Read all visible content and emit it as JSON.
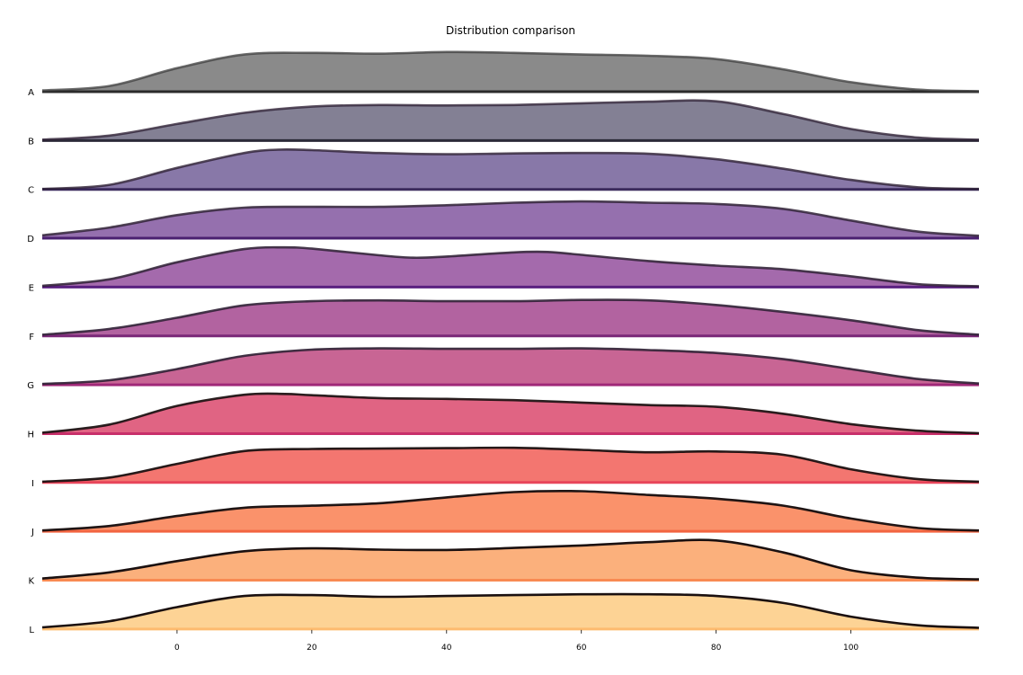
{
  "chart_data": {
    "type": "ridgeline",
    "title": "Distribution comparison",
    "xlabel": "",
    "ylabel": "",
    "xlim": [
      -20,
      119
    ],
    "xticks": [
      0,
      20,
      40,
      60,
      80,
      100
    ],
    "xtick_labels": [
      "0",
      "20",
      "40",
      "60",
      "80",
      "100"
    ],
    "grid": false,
    "series": [
      {
        "name": "A",
        "color": "#8a8a8a",
        "baseline_color": "#2b2b2b",
        "density": [
          [
            -20,
            0.03
          ],
          [
            -10,
            0.14
          ],
          [
            0,
            0.57
          ],
          [
            10,
            0.9
          ],
          [
            20,
            0.94
          ],
          [
            30,
            0.92
          ],
          [
            40,
            0.96
          ],
          [
            50,
            0.94
          ],
          [
            60,
            0.9
          ],
          [
            70,
            0.87
          ],
          [
            80,
            0.79
          ],
          [
            90,
            0.54
          ],
          [
            100,
            0.23
          ],
          [
            110,
            0.05
          ],
          [
            119,
            0.01
          ]
        ]
      },
      {
        "name": "B",
        "color": "#838094",
        "baseline_color": "#2b2a38",
        "density": [
          [
            -20,
            0.02
          ],
          [
            -10,
            0.12
          ],
          [
            0,
            0.4
          ],
          [
            10,
            0.67
          ],
          [
            20,
            0.82
          ],
          [
            30,
            0.86
          ],
          [
            40,
            0.85
          ],
          [
            50,
            0.86
          ],
          [
            60,
            0.9
          ],
          [
            70,
            0.94
          ],
          [
            80,
            0.95
          ],
          [
            90,
            0.64
          ],
          [
            100,
            0.28
          ],
          [
            110,
            0.07
          ],
          [
            119,
            0.02
          ]
        ]
      },
      {
        "name": "C",
        "color": "#8878a8",
        "baseline_color": "#3b2a5c",
        "density": [
          [
            -20,
            0.01
          ],
          [
            -10,
            0.11
          ],
          [
            0,
            0.52
          ],
          [
            10,
            0.88
          ],
          [
            15,
            0.96
          ],
          [
            20,
            0.95
          ],
          [
            30,
            0.88
          ],
          [
            40,
            0.85
          ],
          [
            50,
            0.87
          ],
          [
            60,
            0.88
          ],
          [
            70,
            0.86
          ],
          [
            80,
            0.73
          ],
          [
            90,
            0.5
          ],
          [
            100,
            0.23
          ],
          [
            110,
            0.05
          ],
          [
            119,
            0.01
          ]
        ]
      },
      {
        "name": "D",
        "color": "#9570ae",
        "baseline_color": "#4a2070",
        "density": [
          [
            -20,
            0.07
          ],
          [
            -10,
            0.26
          ],
          [
            0,
            0.56
          ],
          [
            10,
            0.74
          ],
          [
            20,
            0.76
          ],
          [
            30,
            0.76
          ],
          [
            40,
            0.8
          ],
          [
            50,
            0.86
          ],
          [
            60,
            0.89
          ],
          [
            70,
            0.86
          ],
          [
            80,
            0.83
          ],
          [
            90,
            0.71
          ],
          [
            100,
            0.43
          ],
          [
            110,
            0.16
          ],
          [
            119,
            0.06
          ]
        ]
      },
      {
        "name": "E",
        "color": "#a46aac",
        "baseline_color": "#5a2080",
        "density": [
          [
            -20,
            0.03
          ],
          [
            -10,
            0.19
          ],
          [
            0,
            0.6
          ],
          [
            10,
            0.92
          ],
          [
            16,
            0.96
          ],
          [
            20,
            0.93
          ],
          [
            30,
            0.77
          ],
          [
            35,
            0.71
          ],
          [
            40,
            0.74
          ],
          [
            50,
            0.84
          ],
          [
            55,
            0.85
          ],
          [
            60,
            0.78
          ],
          [
            70,
            0.63
          ],
          [
            80,
            0.52
          ],
          [
            90,
            0.43
          ],
          [
            100,
            0.26
          ],
          [
            110,
            0.07
          ],
          [
            119,
            0.02
          ]
        ]
      },
      {
        "name": "F",
        "color": "#b263a0",
        "baseline_color": "#7a2878",
        "density": [
          [
            -20,
            0.03
          ],
          [
            -10,
            0.17
          ],
          [
            0,
            0.44
          ],
          [
            10,
            0.74
          ],
          [
            20,
            0.84
          ],
          [
            30,
            0.86
          ],
          [
            40,
            0.84
          ],
          [
            50,
            0.84
          ],
          [
            60,
            0.87
          ],
          [
            70,
            0.86
          ],
          [
            80,
            0.75
          ],
          [
            90,
            0.58
          ],
          [
            100,
            0.38
          ],
          [
            110,
            0.14
          ],
          [
            119,
            0.03
          ]
        ]
      },
      {
        "name": "G",
        "color": "#c86594",
        "baseline_color": "#a02878",
        "density": [
          [
            -20,
            0.02
          ],
          [
            -10,
            0.11
          ],
          [
            0,
            0.38
          ],
          [
            10,
            0.7
          ],
          [
            20,
            0.85
          ],
          [
            30,
            0.88
          ],
          [
            40,
            0.87
          ],
          [
            50,
            0.87
          ],
          [
            60,
            0.88
          ],
          [
            70,
            0.84
          ],
          [
            80,
            0.77
          ],
          [
            90,
            0.62
          ],
          [
            100,
            0.38
          ],
          [
            110,
            0.14
          ],
          [
            119,
            0.03
          ]
        ]
      },
      {
        "name": "H",
        "color": "#e06483",
        "baseline_color": "#c82f6a",
        "density": [
          [
            -20,
            0.02
          ],
          [
            -10,
            0.22
          ],
          [
            0,
            0.67
          ],
          [
            10,
            0.94
          ],
          [
            16,
            0.96
          ],
          [
            20,
            0.93
          ],
          [
            30,
            0.86
          ],
          [
            40,
            0.84
          ],
          [
            50,
            0.81
          ],
          [
            60,
            0.75
          ],
          [
            70,
            0.69
          ],
          [
            80,
            0.65
          ],
          [
            90,
            0.48
          ],
          [
            100,
            0.23
          ],
          [
            110,
            0.07
          ],
          [
            119,
            0.01
          ]
        ]
      },
      {
        "name": "I",
        "color": "#f37670",
        "baseline_color": "#e8455a",
        "density": [
          [
            -20,
            0.02
          ],
          [
            -10,
            0.12
          ],
          [
            0,
            0.45
          ],
          [
            10,
            0.76
          ],
          [
            20,
            0.81
          ],
          [
            30,
            0.82
          ],
          [
            40,
            0.83
          ],
          [
            50,
            0.84
          ],
          [
            60,
            0.79
          ],
          [
            70,
            0.73
          ],
          [
            80,
            0.75
          ],
          [
            90,
            0.67
          ],
          [
            100,
            0.32
          ],
          [
            110,
            0.08
          ],
          [
            119,
            0.02
          ]
        ]
      },
      {
        "name": "J",
        "color": "#fa926b",
        "baseline_color": "#f26440",
        "density": [
          [
            -20,
            0.02
          ],
          [
            -10,
            0.13
          ],
          [
            0,
            0.37
          ],
          [
            10,
            0.57
          ],
          [
            20,
            0.62
          ],
          [
            30,
            0.68
          ],
          [
            40,
            0.82
          ],
          [
            50,
            0.95
          ],
          [
            60,
            0.97
          ],
          [
            70,
            0.88
          ],
          [
            80,
            0.79
          ],
          [
            90,
            0.62
          ],
          [
            100,
            0.31
          ],
          [
            110,
            0.08
          ],
          [
            119,
            0.02
          ]
        ]
      },
      {
        "name": "K",
        "color": "#fbb07c",
        "baseline_color": "#f88a52",
        "density": [
          [
            -20,
            0.04
          ],
          [
            -10,
            0.19
          ],
          [
            0,
            0.46
          ],
          [
            10,
            0.7
          ],
          [
            20,
            0.77
          ],
          [
            30,
            0.74
          ],
          [
            40,
            0.73
          ],
          [
            50,
            0.78
          ],
          [
            60,
            0.84
          ],
          [
            70,
            0.92
          ],
          [
            80,
            0.96
          ],
          [
            90,
            0.67
          ],
          [
            100,
            0.24
          ],
          [
            110,
            0.06
          ],
          [
            119,
            0.02
          ]
        ]
      },
      {
        "name": "L",
        "color": "#fdd395",
        "baseline_color": "#fdbb6f",
        "density": [
          [
            -20,
            0.04
          ],
          [
            -10,
            0.19
          ],
          [
            0,
            0.53
          ],
          [
            10,
            0.8
          ],
          [
            20,
            0.82
          ],
          [
            30,
            0.78
          ],
          [
            40,
            0.8
          ],
          [
            50,
            0.82
          ],
          [
            60,
            0.84
          ],
          [
            70,
            0.84
          ],
          [
            80,
            0.8
          ],
          [
            90,
            0.63
          ],
          [
            100,
            0.3
          ],
          [
            110,
            0.09
          ],
          [
            119,
            0.03
          ]
        ]
      }
    ]
  }
}
